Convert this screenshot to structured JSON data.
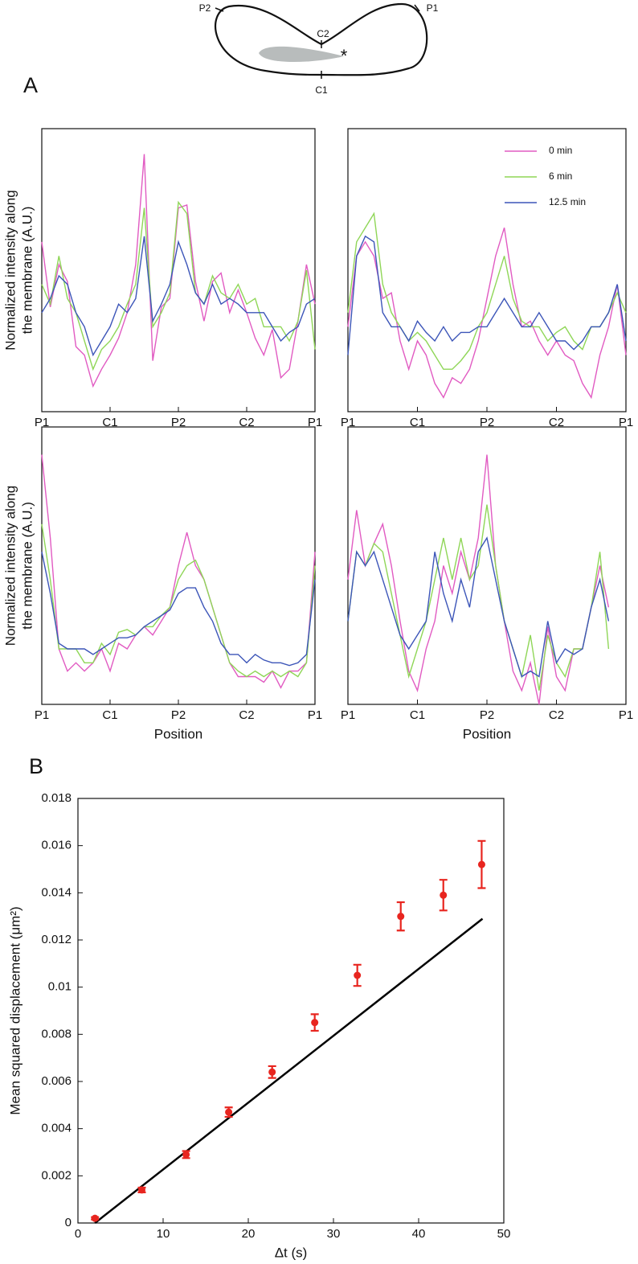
{
  "diagram": {
    "labels": [
      "P2",
      "P1",
      "C2",
      "C1"
    ]
  },
  "chart_data": [
    {
      "type": "line",
      "panel": "A",
      "ylabel": [
        "Normalized intensity along",
        "the membrane (A.U.)"
      ],
      "x": [
        0,
        0.125,
        0.25,
        0.375,
        0.5,
        0.625,
        0.75,
        0.875,
        1,
        1.125,
        1.25,
        1.375,
        1.5,
        1.625,
        1.75,
        1.875,
        2,
        2.125,
        2.25,
        2.375,
        2.5,
        2.625,
        2.75,
        2.875,
        3,
        3.125,
        3.25,
        3.375,
        3.5,
        3.625,
        3.75,
        3.875,
        4
      ],
      "xlim": [
        0,
        4
      ],
      "ylim": [
        0,
        1
      ],
      "xticks": [
        {
          "value": 0,
          "label": "P1"
        },
        {
          "value": 1,
          "label": "C1"
        },
        {
          "value": 2,
          "label": "P2"
        },
        {
          "value": 3,
          "label": "C2"
        },
        {
          "value": 4,
          "label": "P1"
        }
      ],
      "series": [
        {
          "color": "#e15bc2",
          "values": [
            0.6,
            0.37,
            0.52,
            0.46,
            0.23,
            0.2,
            0.09,
            0.15,
            0.2,
            0.26,
            0.35,
            0.52,
            0.91,
            0.18,
            0.37,
            0.4,
            0.72,
            0.73,
            0.46,
            0.32,
            0.46,
            0.49,
            0.35,
            0.43,
            0.35,
            0.26,
            0.2,
            0.29,
            0.12,
            0.15,
            0.32,
            0.52,
            0.38
          ]
        },
        {
          "color": "#8fd657",
          "values": [
            0.45,
            0.38,
            0.55,
            0.4,
            0.35,
            0.25,
            0.15,
            0.22,
            0.25,
            0.3,
            0.38,
            0.45,
            0.72,
            0.3,
            0.35,
            0.42,
            0.74,
            0.7,
            0.42,
            0.38,
            0.48,
            0.42,
            0.4,
            0.45,
            0.38,
            0.4,
            0.3,
            0.3,
            0.3,
            0.25,
            0.32,
            0.5,
            0.22
          ]
        },
        {
          "color": "#3c55b8",
          "values": [
            0.35,
            0.4,
            0.48,
            0.45,
            0.35,
            0.3,
            0.2,
            0.25,
            0.3,
            0.38,
            0.35,
            0.4,
            0.62,
            0.32,
            0.38,
            0.45,
            0.6,
            0.52,
            0.42,
            0.38,
            0.45,
            0.38,
            0.4,
            0.38,
            0.35,
            0.35,
            0.35,
            0.3,
            0.25,
            0.28,
            0.3,
            0.38,
            0.4
          ]
        }
      ]
    },
    {
      "type": "line",
      "legend": "upper right",
      "x": [
        0,
        0.125,
        0.25,
        0.375,
        0.5,
        0.625,
        0.75,
        0.875,
        1,
        1.125,
        1.25,
        1.375,
        1.5,
        1.625,
        1.75,
        1.875,
        2,
        2.125,
        2.25,
        2.375,
        2.5,
        2.625,
        2.75,
        2.875,
        3,
        3.125,
        3.25,
        3.375,
        3.5,
        3.625,
        3.75,
        3.875,
        4
      ],
      "xlim": [
        0,
        4
      ],
      "ylim": [
        0,
        1
      ],
      "xticks": [
        {
          "value": 0,
          "label": "P1"
        },
        {
          "value": 1,
          "label": "C1"
        },
        {
          "value": 2,
          "label": "P2"
        },
        {
          "value": 3,
          "label": "C2"
        },
        {
          "value": 4,
          "label": "P1"
        }
      ],
      "series": [
        {
          "name": "0 min",
          "color": "#e15bc2",
          "values": [
            0.3,
            0.55,
            0.6,
            0.55,
            0.4,
            0.42,
            0.25,
            0.15,
            0.25,
            0.2,
            0.1,
            0.05,
            0.12,
            0.1,
            0.15,
            0.25,
            0.4,
            0.55,
            0.65,
            0.45,
            0.3,
            0.32,
            0.25,
            0.2,
            0.25,
            0.2,
            0.18,
            0.1,
            0.05,
            0.2,
            0.3,
            0.45,
            0.2
          ]
        },
        {
          "name": "6 min",
          "color": "#8fd657",
          "values": [
            0.35,
            0.6,
            0.65,
            0.7,
            0.45,
            0.35,
            0.3,
            0.25,
            0.28,
            0.25,
            0.2,
            0.15,
            0.15,
            0.18,
            0.22,
            0.3,
            0.35,
            0.45,
            0.55,
            0.4,
            0.32,
            0.3,
            0.3,
            0.25,
            0.28,
            0.3,
            0.25,
            0.22,
            0.3,
            0.3,
            0.35,
            0.42,
            0.35
          ]
        },
        {
          "name": "12.5 min",
          "color": "#3c55b8",
          "values": [
            0.2,
            0.55,
            0.62,
            0.6,
            0.35,
            0.3,
            0.3,
            0.25,
            0.32,
            0.28,
            0.25,
            0.3,
            0.25,
            0.28,
            0.28,
            0.3,
            0.3,
            0.35,
            0.4,
            0.35,
            0.3,
            0.3,
            0.35,
            0.3,
            0.25,
            0.25,
            0.22,
            0.25,
            0.3,
            0.3,
            0.35,
            0.45,
            0.25
          ]
        }
      ]
    },
    {
      "type": "line",
      "ylabel": [
        "Normalized intensity along",
        "the membrane (A.U.)"
      ],
      "xlabel": "Position",
      "x": [
        0,
        0.125,
        0.25,
        0.375,
        0.5,
        0.625,
        0.75,
        0.875,
        1,
        1.125,
        1.25,
        1.375,
        1.5,
        1.625,
        1.75,
        1.875,
        2,
        2.125,
        2.25,
        2.375,
        2.5,
        2.625,
        2.75,
        2.875,
        3,
        3.125,
        3.25,
        3.375,
        3.5,
        3.625,
        3.75,
        3.875,
        4
      ],
      "xlim": [
        0,
        4
      ],
      "ylim": [
        0,
        1
      ],
      "xticks": [
        {
          "value": 0,
          "label": "P1"
        },
        {
          "value": 1,
          "label": "C1"
        },
        {
          "value": 2,
          "label": "P2"
        },
        {
          "value": 3,
          "label": "C2"
        },
        {
          "value": 4,
          "label": "P1"
        }
      ],
      "series": [
        {
          "color": "#e15bc2",
          "values": [
            0.9,
            0.6,
            0.2,
            0.12,
            0.15,
            0.12,
            0.15,
            0.2,
            0.12,
            0.22,
            0.2,
            0.25,
            0.28,
            0.25,
            0.3,
            0.35,
            0.5,
            0.62,
            0.5,
            0.45,
            0.35,
            0.25,
            0.15,
            0.1,
            0.1,
            0.1,
            0.08,
            0.12,
            0.06,
            0.12,
            0.12,
            0.15,
            0.55
          ]
        },
        {
          "color": "#8fd657",
          "values": [
            0.65,
            0.45,
            0.2,
            0.2,
            0.2,
            0.15,
            0.15,
            0.22,
            0.18,
            0.26,
            0.27,
            0.25,
            0.28,
            0.28,
            0.32,
            0.35,
            0.45,
            0.5,
            0.52,
            0.45,
            0.35,
            0.25,
            0.15,
            0.12,
            0.1,
            0.12,
            0.1,
            0.12,
            0.1,
            0.12,
            0.1,
            0.15,
            0.5
          ]
        },
        {
          "color": "#3c55b8",
          "values": [
            0.55,
            0.4,
            0.22,
            0.2,
            0.2,
            0.2,
            0.18,
            0.2,
            0.22,
            0.24,
            0.24,
            0.25,
            0.28,
            0.3,
            0.32,
            0.34,
            0.4,
            0.42,
            0.42,
            0.35,
            0.3,
            0.22,
            0.18,
            0.18,
            0.15,
            0.18,
            0.16,
            0.15,
            0.15,
            0.14,
            0.15,
            0.18,
            0.45
          ]
        }
      ]
    },
    {
      "type": "line",
      "xlabel": "Position",
      "x": [
        0,
        0.125,
        0.25,
        0.375,
        0.5,
        0.625,
        0.75,
        0.875,
        1,
        1.125,
        1.25,
        1.375,
        1.5,
        1.625,
        1.75,
        1.875,
        2,
        2.125,
        2.25,
        2.375,
        2.5,
        2.625,
        2.75,
        2.875,
        3,
        3.125,
        3.25,
        3.375,
        3.5,
        3.625,
        3.75,
        3.875,
        4
      ],
      "xlim": [
        0,
        4
      ],
      "ylim": [
        0,
        1
      ],
      "xticks": [
        {
          "value": 0,
          "label": "P1"
        },
        {
          "value": 1,
          "label": "C1"
        },
        {
          "value": 2,
          "label": "P2"
        },
        {
          "value": 3,
          "label": "C2"
        },
        {
          "value": 4,
          "label": "P1"
        }
      ],
      "series": [
        {
          "color": "#e15bc2",
          "values": [
            0.45,
            0.7,
            0.5,
            0.58,
            0.65,
            0.5,
            0.3,
            0.12,
            0.05,
            0.2,
            0.3,
            0.5,
            0.4,
            0.55,
            0.45,
            0.6,
            0.9,
            0.5,
            0.3,
            0.12,
            0.05,
            0.15,
            0,
            0.28,
            0.1,
            0.05,
            0.2,
            0.2,
            0.35,
            0.5,
            0.35,
            null,
            null
          ]
        },
        {
          "color": "#8fd657",
          "values": [
            0.3,
            0.55,
            0.5,
            0.58,
            0.55,
            0.4,
            0.25,
            0.1,
            0.2,
            0.3,
            0.45,
            0.6,
            0.45,
            0.6,
            0.45,
            0.5,
            0.72,
            0.5,
            0.3,
            0.2,
            0.1,
            0.25,
            0.05,
            0.25,
            0.15,
            0.1,
            0.2,
            0.2,
            0.35,
            0.55,
            0.2,
            null,
            null
          ]
        },
        {
          "color": "#3c55b8",
          "values": [
            0.3,
            0.55,
            0.5,
            0.55,
            0.45,
            0.35,
            0.25,
            0.2,
            0.25,
            0.3,
            0.55,
            0.4,
            0.3,
            0.45,
            0.35,
            0.55,
            0.6,
            0.45,
            0.3,
            0.2,
            0.1,
            0.12,
            0.1,
            0.3,
            0.15,
            0.2,
            0.18,
            0.2,
            0.35,
            0.45,
            0.3,
            null,
            null
          ]
        }
      ]
    },
    {
      "type": "scatter",
      "panel": "B",
      "ylabel": "Mean squared displacement (μm²)",
      "xlabel": "Δt (s)",
      "x": [
        2,
        7.5,
        12.7,
        17.7,
        22.8,
        27.8,
        32.8,
        37.9,
        42.9,
        47.4
      ],
      "xlim": [
        0,
        50
      ],
      "ylim": [
        0,
        0.018
      ],
      "xticks": [
        0,
        10,
        20,
        30,
        40,
        50
      ],
      "yticks": [
        0,
        0.002,
        0.004,
        0.006,
        0.008,
        0.01,
        0.012,
        0.014,
        0.016,
        0.018
      ],
      "series": [
        {
          "color": "#e8251f",
          "values": [
            0.0002,
            0.0014,
            0.0029,
            0.0047,
            0.0064,
            0.0085,
            0.0105,
            0.013,
            0.0139,
            0.0152
          ],
          "errors": [
            5e-05,
            0.0001,
            0.00015,
            0.0002,
            0.00025,
            0.00035,
            0.00045,
            0.0006,
            0.00065,
            0.001
          ]
        }
      ],
      "fit": {
        "color": "#000000",
        "x": [
          2,
          47.5
        ],
        "values": [
          0,
          0.0129
        ]
      }
    }
  ]
}
